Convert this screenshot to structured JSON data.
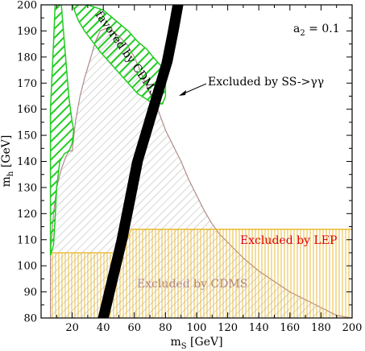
{
  "chart_data": {
    "type": "area",
    "title": "",
    "xlabel": "m",
    "xlabel_sub": "S",
    "xlabel_unit": " [GeV]",
    "ylabel": "m",
    "ylabel_sub": "h",
    "ylabel_unit": " [GeV]",
    "xlim": [
      0,
      200
    ],
    "ylim": [
      80,
      200
    ],
    "x_ticks": [
      20,
      40,
      60,
      80,
      100,
      120,
      140,
      160,
      180,
      200
    ],
    "y_ticks": [
      80,
      90,
      100,
      110,
      120,
      130,
      140,
      150,
      160,
      170,
      180,
      190,
      200
    ],
    "grid": false,
    "parameter_label": "a",
    "parameter_sub": "2",
    "parameter_value": " = 0.1",
    "regions": [
      {
        "name": "Excluded by CDMS",
        "fill": "hatched-diagonal",
        "color": "#b08a8a",
        "label_color": "#b38585",
        "boundary": [
          [
            6,
            80
          ],
          [
            6,
            105
          ],
          [
            8,
            120
          ],
          [
            10,
            130
          ],
          [
            13,
            137
          ],
          [
            16,
            142
          ],
          [
            18,
            144
          ],
          [
            20,
            144
          ],
          [
            22,
            155
          ],
          [
            25,
            165
          ],
          [
            28,
            172
          ],
          [
            32,
            180
          ],
          [
            35,
            186
          ],
          [
            38,
            190
          ],
          [
            42,
            191
          ],
          [
            46,
            190
          ],
          [
            50,
            188
          ],
          [
            55,
            185
          ],
          [
            60,
            180
          ],
          [
            65,
            173
          ],
          [
            70,
            166
          ],
          [
            75,
            160
          ],
          [
            80,
            152
          ],
          [
            85,
            146
          ],
          [
            90,
            140
          ],
          [
            95,
            133
          ],
          [
            100,
            127
          ],
          [
            105,
            121
          ],
          [
            110,
            116
          ],
          [
            115,
            112
          ],
          [
            120,
            109
          ],
          [
            130,
            103
          ],
          [
            140,
            98
          ],
          [
            150,
            94
          ],
          [
            160,
            90
          ],
          [
            170,
            87
          ],
          [
            180,
            84
          ],
          [
            190,
            81
          ],
          [
            200,
            80
          ]
        ]
      },
      {
        "name": "Excluded by LEP",
        "fill": "hatched-vertical",
        "color": "#e6b422",
        "label_color": "#e00000",
        "boundary": [
          [
            6,
            105
          ],
          [
            52,
            105
          ],
          [
            58,
            114
          ],
          [
            200,
            114
          ]
        ]
      },
      {
        "name": "favored by CDMS",
        "fill": "hatched-diagonal",
        "color": "#22cc22",
        "label_color": "#000000",
        "outline": [
          [
            13,
            200
          ],
          [
            16,
            178
          ],
          [
            18,
            164
          ],
          [
            20,
            155
          ],
          [
            21,
            152
          ],
          [
            20,
            147
          ],
          [
            18,
            144
          ],
          [
            15,
            143
          ],
          [
            12,
            140
          ],
          [
            10,
            130
          ],
          [
            9,
            118
          ],
          [
            8,
            108
          ],
          [
            6,
            104
          ],
          [
            6,
            130
          ],
          [
            6,
            160
          ],
          [
            8,
            185
          ],
          [
            9,
            200
          ]
        ],
        "outline2": [
          [
            20,
            200
          ],
          [
            30,
            200
          ],
          [
            40,
            198
          ],
          [
            48,
            194
          ],
          [
            56,
            190
          ],
          [
            62,
            186
          ],
          [
            68,
            183
          ],
          [
            72,
            180
          ],
          [
            78,
            176
          ],
          [
            80,
            172
          ],
          [
            80,
            165
          ],
          [
            78,
            162
          ],
          [
            70,
            163
          ],
          [
            62,
            166
          ],
          [
            56,
            170
          ],
          [
            50,
            174
          ],
          [
            44,
            178
          ],
          [
            38,
            182
          ],
          [
            33,
            186
          ],
          [
            28,
            190
          ],
          [
            24,
            194
          ]
        ]
      },
      {
        "name": "Excluded by SS->γγ",
        "fill": "solid",
        "color": "#000000",
        "label_color": "#000000",
        "centerline": [
          [
            40,
            80
          ],
          [
            46,
            95
          ],
          [
            52,
            110
          ],
          [
            57,
            125
          ],
          [
            62,
            140
          ],
          [
            67,
            150
          ],
          [
            71,
            158
          ],
          [
            76,
            168
          ],
          [
            81,
            178
          ],
          [
            85,
            190
          ],
          [
            88,
            200
          ]
        ],
        "half_width": 3.5
      }
    ]
  }
}
